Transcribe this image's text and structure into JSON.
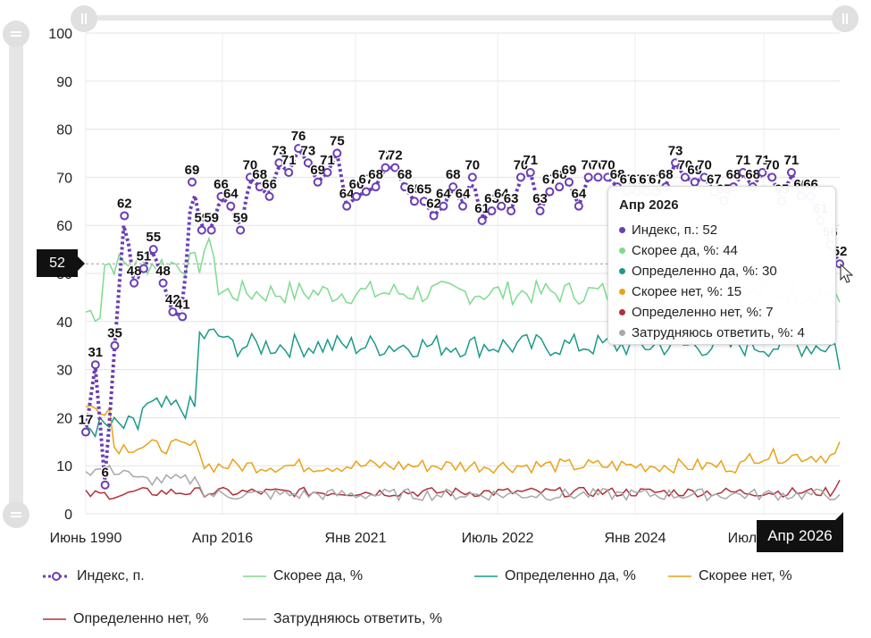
{
  "chart_data": {
    "type": "line",
    "ylim": [
      0,
      100
    ],
    "yticks": [
      "0",
      "10",
      "20",
      "30",
      "40",
      "50",
      "60",
      "70",
      "80",
      "90",
      "100"
    ],
    "xticks": [
      "Июнь 1990",
      "Апр 2016",
      "Янв 2021",
      "Июль 2022",
      "Янв 2024",
      "Июль 2025"
    ],
    "grid": true,
    "legend_position": "bottom",
    "n_points": 160,
    "series": [
      {
        "name": "Индекс, п.",
        "color": "#6a3fb5",
        "style": "dotted-markers",
        "labeled_values": [
          17,
          31,
          6,
          35,
          62,
          48,
          51,
          55,
          48,
          42,
          41,
          69,
          59,
          59,
          66,
          64,
          59,
          70,
          68,
          66,
          73,
          71,
          76,
          73,
          69,
          71,
          75,
          64,
          66,
          67,
          68,
          72,
          72,
          68,
          65,
          65,
          62,
          64,
          68,
          64,
          70,
          61,
          63,
          64,
          63,
          70,
          71,
          63,
          67,
          68,
          69,
          64,
          70,
          70,
          70,
          68,
          67,
          67,
          67,
          67,
          68,
          73,
          70,
          69,
          70,
          67,
          65,
          68,
          71,
          68,
          71,
          70,
          65,
          71,
          66,
          66,
          61,
          56,
          52
        ]
      },
      {
        "name": "Скорее да, %",
        "color": "#7ddb8e"
      },
      {
        "name": "Определенно да, %",
        "color": "#1a9a8a"
      },
      {
        "name": "Скорее нет, %",
        "color": "#e8a317"
      },
      {
        "name": "Определенно нет, %",
        "color": "#b0303a"
      },
      {
        "name": "Затрудняюсь ответить, %",
        "color": "#a8a8a8"
      }
    ],
    "crosshair_y_value": 52,
    "crosshair_x_label": "Апр 2026"
  },
  "tooltip": {
    "title": "Апр 2026",
    "rows": [
      {
        "label": "Индекс, п.: 52",
        "color": "#6a3fb5"
      },
      {
        "label": "Скорее да, %: 44",
        "color": "#7ddb8e"
      },
      {
        "label": "Определенно да, %: 30",
        "color": "#1a9a8a"
      },
      {
        "label": "Скорее нет, %: 15",
        "color": "#e8a317"
      },
      {
        "label": "Определенно нет, %: 7",
        "color": "#b0303a"
      },
      {
        "label": "Затрудняюсь ответить, %: 4",
        "color": "#a8a8a8"
      }
    ]
  },
  "legend": [
    {
      "label": "Индекс, п."
    },
    {
      "label": "Скорее да, %"
    },
    {
      "label": "Определенно да, %"
    },
    {
      "label": "Скорее нет, %"
    },
    {
      "label": "Определенно нет, %"
    },
    {
      "label": "Затрудняюсь ответить, %"
    }
  ]
}
